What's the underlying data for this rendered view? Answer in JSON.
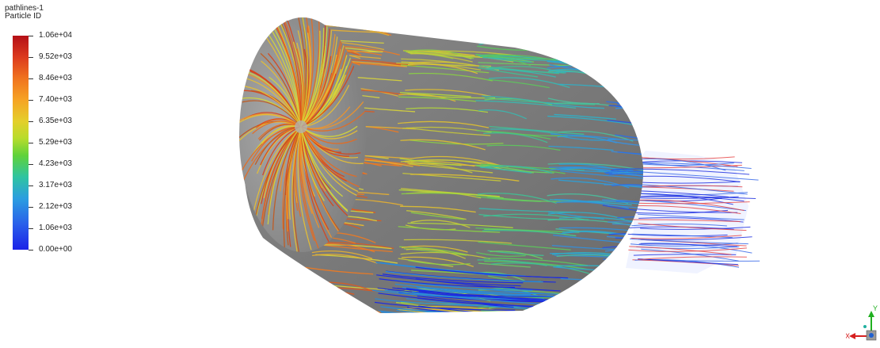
{
  "legend": {
    "title": "pathlines-1",
    "variable": "Particle ID",
    "ticks": [
      "1.06e+04",
      "9.52e+03",
      "8.46e+03",
      "7.40e+03",
      "6.35e+03",
      "5.29e+03",
      "4.23e+03",
      "3.17e+03",
      "2.12e+03",
      "1.06e+03",
      "0.00e+00"
    ],
    "range": [
      0,
      10600
    ]
  },
  "triad": {
    "x_label": "X",
    "y_label": "Y",
    "x_color": "#d62020",
    "y_color": "#20b020",
    "z_color": "#2060d0"
  },
  "colors": {
    "background": "#ffffff",
    "surface": "#8c8c8c"
  }
}
